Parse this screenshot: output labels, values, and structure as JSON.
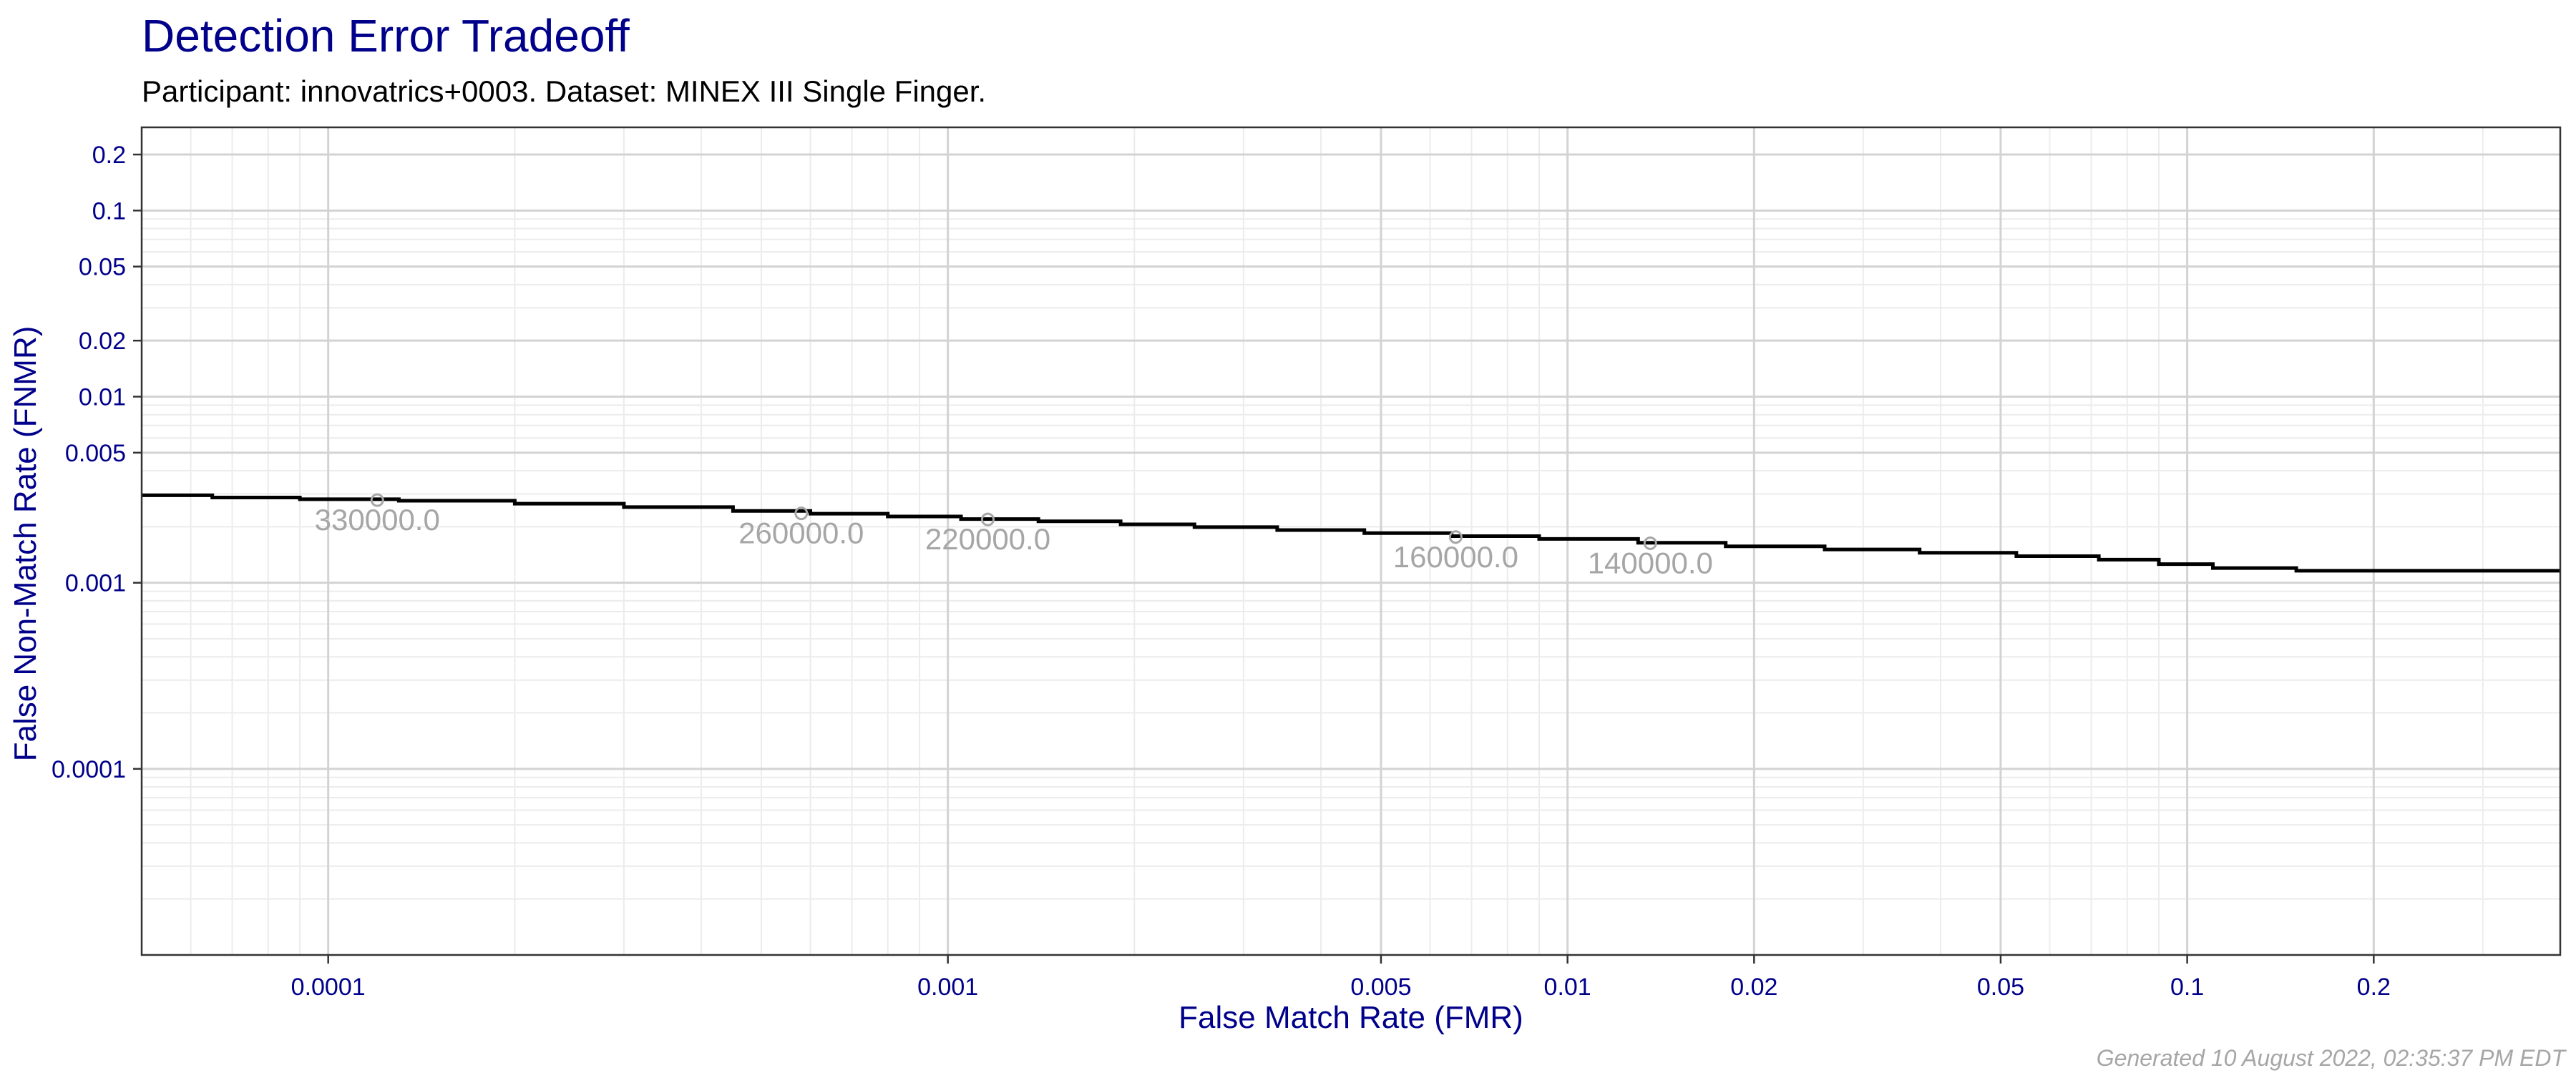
{
  "chart_data": {
    "type": "line",
    "title": "Detection Error Tradeoff",
    "subtitle": "Participant: innovatrics+0003. Dataset: MINEX III Single Finger.",
    "xlabel": "False Match Rate (FMR)",
    "ylabel": "False Non-Match Rate (FNMR)",
    "x_scale": "log",
    "y_scale": "log",
    "xlim": [
      5e-05,
      0.4
    ],
    "ylim": [
      1e-05,
      0.28
    ],
    "grid": true,
    "x_ticks": [
      {
        "value": 0.0001,
        "label": "0.0001"
      },
      {
        "value": 0.001,
        "label": "0.001"
      },
      {
        "value": 0.005,
        "label": "0.005"
      },
      {
        "value": 0.01,
        "label": "0.01"
      },
      {
        "value": 0.02,
        "label": "0.02"
      },
      {
        "value": 0.05,
        "label": "0.05"
      },
      {
        "value": 0.1,
        "label": "0.1"
      },
      {
        "value": 0.2,
        "label": "0.2"
      }
    ],
    "y_ticks": [
      {
        "value": 0.2,
        "label": "0.2"
      },
      {
        "value": 0.1,
        "label": "0.1"
      },
      {
        "value": 0.05,
        "label": "0.05"
      },
      {
        "value": 0.02,
        "label": "0.02"
      },
      {
        "value": 0.01,
        "label": "0.01"
      },
      {
        "value": 0.005,
        "label": "0.005"
      },
      {
        "value": 0.001,
        "label": "0.001"
      },
      {
        "value": 0.0001,
        "label": "0.0001"
      }
    ],
    "series": [
      {
        "color": "#000000",
        "points": [
          [
            5e-05,
            0.00295
          ],
          [
            6.5e-05,
            0.00287
          ],
          [
            9e-05,
            0.00281
          ],
          [
            0.00013,
            0.00276
          ],
          [
            0.0002,
            0.00266
          ],
          [
            0.0003,
            0.00255
          ],
          [
            0.00045,
            0.00243
          ],
          [
            0.0006,
            0.00235
          ],
          [
            0.0008,
            0.00227
          ],
          [
            0.00105,
            0.0022
          ],
          [
            0.0014,
            0.00214
          ],
          [
            0.0019,
            0.00206
          ],
          [
            0.0025,
            0.00199
          ],
          [
            0.0034,
            0.00192
          ],
          [
            0.0047,
            0.00185
          ],
          [
            0.0065,
            0.00178
          ],
          [
            0.009,
            0.00172
          ],
          [
            0.013,
            0.00164
          ],
          [
            0.018,
            0.00157
          ],
          [
            0.026,
            0.00151
          ],
          [
            0.037,
            0.00145
          ],
          [
            0.053,
            0.00139
          ],
          [
            0.072,
            0.00133
          ],
          [
            0.09,
            0.00126
          ],
          [
            0.11,
            0.0012
          ],
          [
            0.15,
            0.00116
          ],
          [
            0.4,
            0.00116
          ]
        ]
      }
    ],
    "threshold_labels": [
      {
        "fmr": 0.00012,
        "fnmr": 0.00278,
        "label": "330000.0"
      },
      {
        "fmr": 0.00058,
        "fnmr": 0.00236,
        "label": "260000.0"
      },
      {
        "fmr": 0.00116,
        "fnmr": 0.00219,
        "label": "220000.0"
      },
      {
        "fmr": 0.0066,
        "fnmr": 0.00176,
        "label": "160000.0"
      },
      {
        "fmr": 0.0136,
        "fnmr": 0.00163,
        "label": "140000.0"
      }
    ],
    "caption": "Generated 10 August 2022, 02:35:37 PM EDT"
  },
  "colors": {
    "title": "#00008b",
    "axis_text": "#00008b",
    "grid_major": "#d3d3d3",
    "grid_minor": "#ececec",
    "curve": "#000000",
    "threshold": "#a6a6a6"
  }
}
